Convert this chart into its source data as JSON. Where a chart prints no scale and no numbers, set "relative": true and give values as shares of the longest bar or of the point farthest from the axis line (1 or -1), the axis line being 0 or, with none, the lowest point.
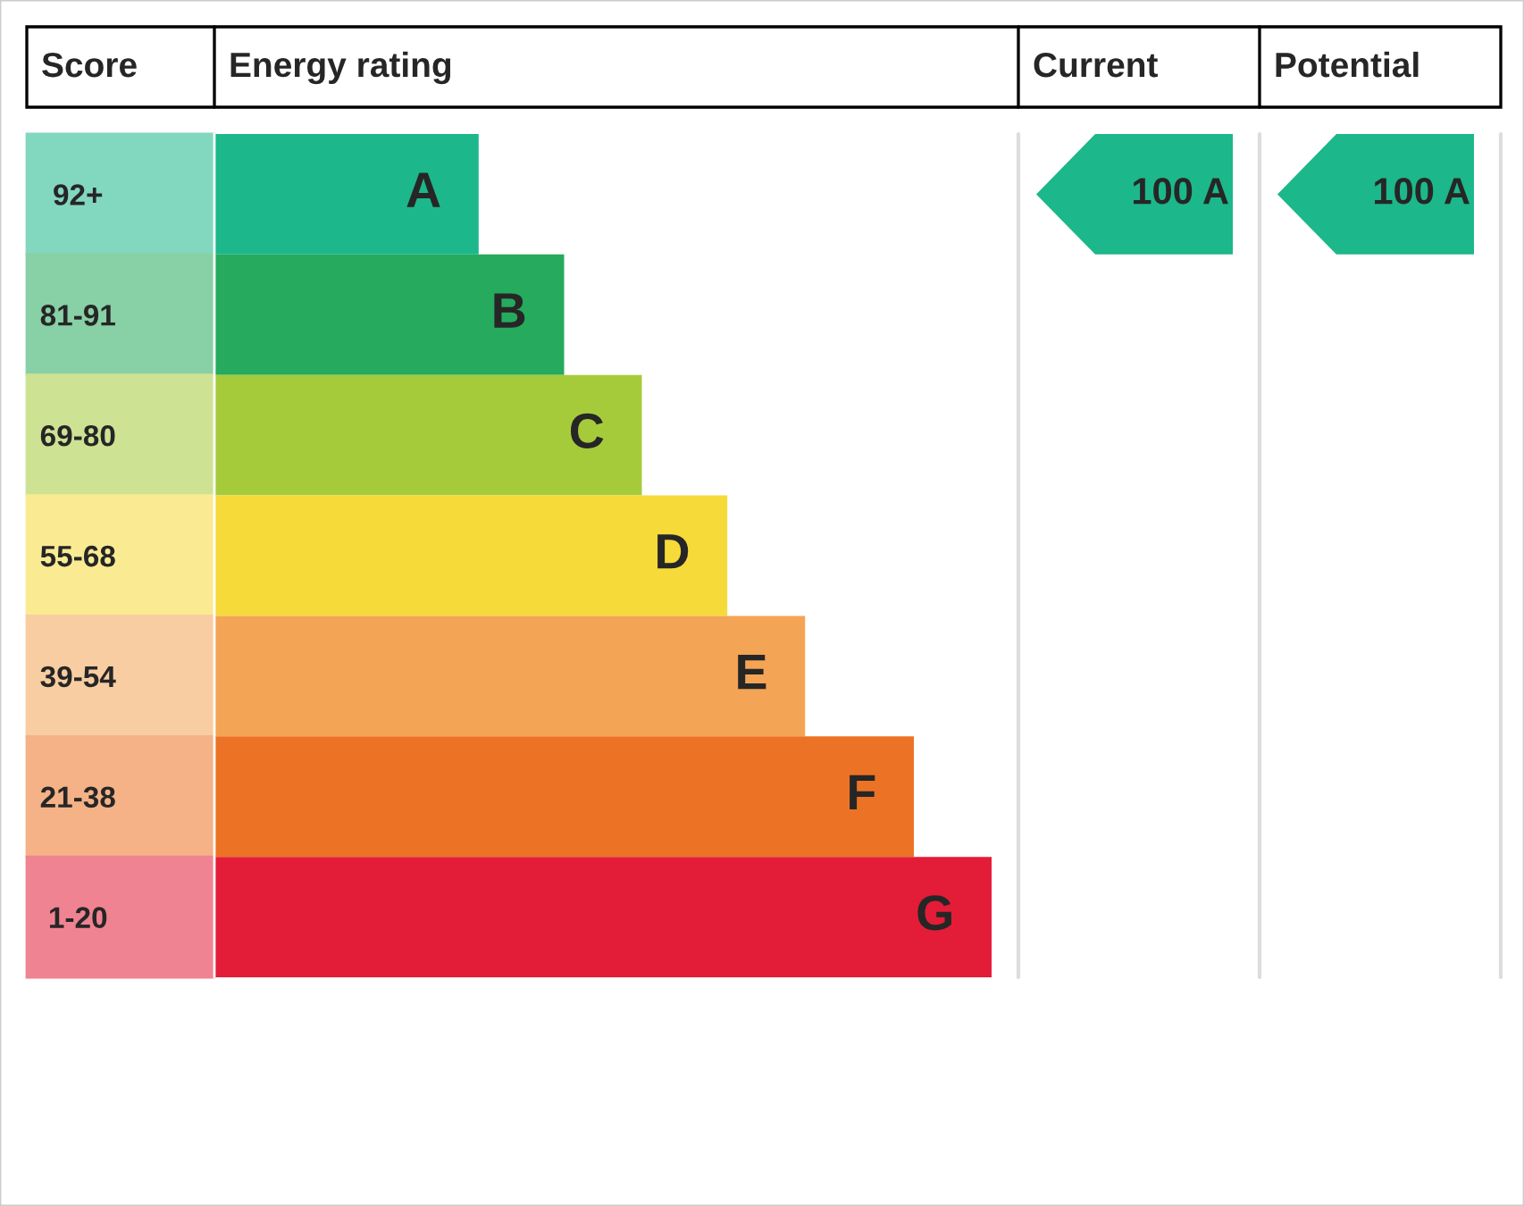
{
  "chart_data": {
    "type": "bar",
    "orientation": "horizontal",
    "relative": true,
    "categories": [
      "92+",
      "81-91",
      "69-80",
      "55-68",
      "39-54",
      "21-38",
      "1-20"
    ],
    "values": [
      0.34,
      0.45,
      0.55,
      0.66,
      0.76,
      0.9,
      1
    ],
    "colors": [
      "#1cb78a",
      "#26aa5e",
      "#a6cb3a",
      "#f5da3a",
      "#f3a454",
      "#ec7325",
      "#e31d37"
    ],
    "annotations": [
      "Score",
      "Energy rating",
      "Current",
      "Potential",
      "100 A",
      "100 A",
      {
        "text": "A",
        "x": 0.34,
        "y": "92+"
      },
      {
        "text": "B",
        "x": 0.45,
        "y": "81-91"
      },
      {
        "text": "C",
        "x": 0.55,
        "y": "69-80"
      },
      {
        "text": "D",
        "x": 0.66,
        "y": "55-68"
      },
      {
        "text": "E",
        "x": 0.76,
        "y": "39-54"
      },
      {
        "text": "F",
        "x": 0.9,
        "y": "21-38"
      },
      {
        "text": "G",
        "x": 1,
        "y": "1-20"
      }
    ]
  }
}
